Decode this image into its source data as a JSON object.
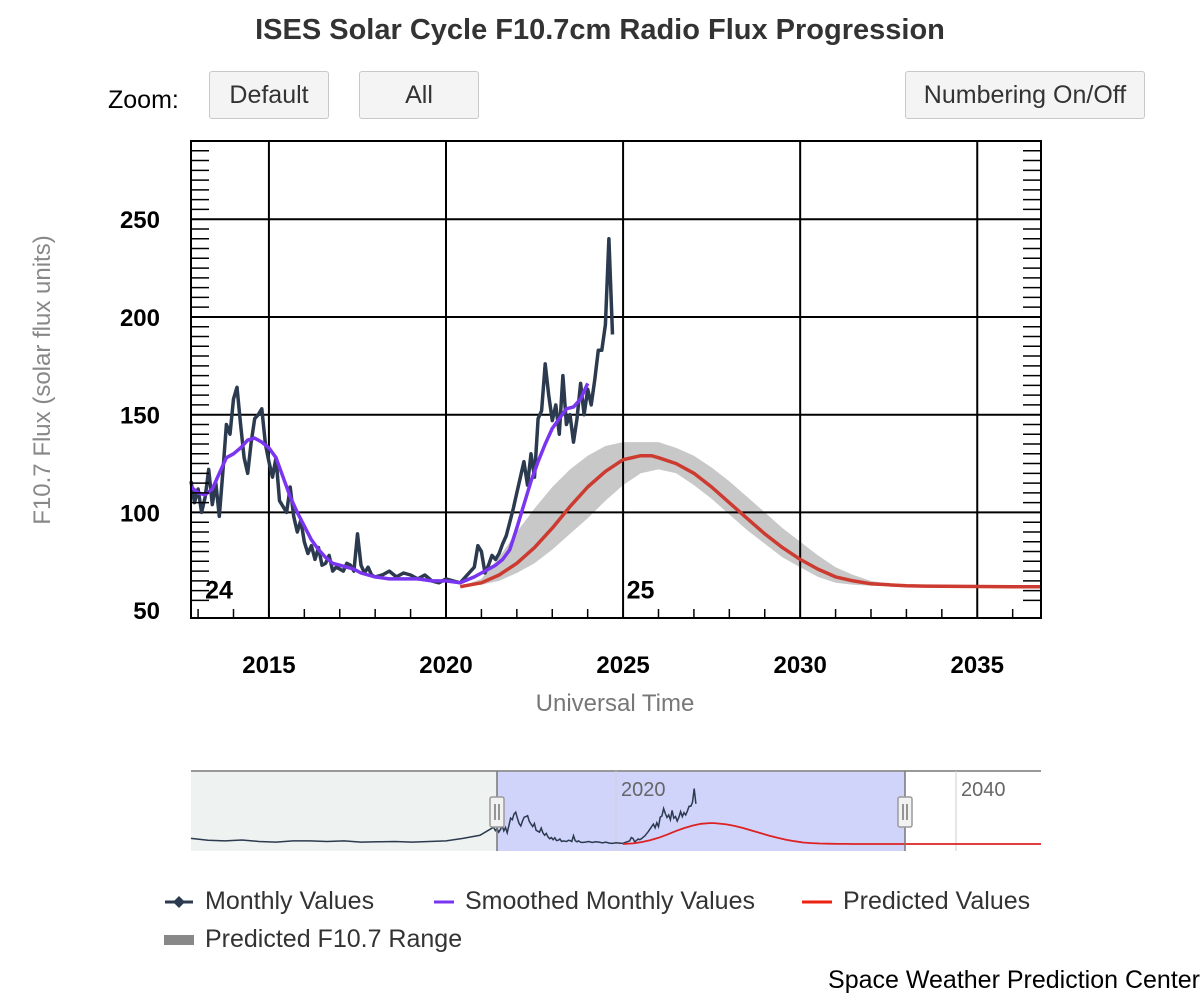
{
  "title": "ISES Solar Cycle F10.7cm Radio Flux Progression",
  "zoom": {
    "label": "Zoom:",
    "default_label": "Default",
    "all_label": "All",
    "numbering_label": "Numbering On/Off"
  },
  "credit": "Space Weather Prediction Center",
  "navigator": {
    "tick_labels": [
      "2020",
      "2040"
    ],
    "tick_years": [
      2020,
      2040
    ],
    "range_years": [
      1995,
      2045
    ],
    "selected_years": [
      2013,
      2037
    ],
    "data_end_year": 2024.8
  },
  "colors": {
    "monthly": "#2b3a4e",
    "smoothed": "#7a35f0",
    "predicted": "#cc3a30",
    "range": "#c8c8c8",
    "navigator_fill": "#c8cdfa"
  },
  "chart_data": {
    "type": "line",
    "title": "ISES Solar Cycle F10.7cm Radio Flux Progression",
    "xlabel": "Universal Time",
    "ylabel": "F10.7 Flux (solar flux units)",
    "xlim": [
      2012.8,
      2036.8
    ],
    "ylim": [
      46,
      290
    ],
    "x_ticks": [
      2015,
      2020,
      2025,
      2030,
      2035
    ],
    "y_ticks": [
      50,
      100,
      150,
      200,
      250
    ],
    "grid": true,
    "cycle_labels": [
      {
        "text": "24",
        "x": 2013.2,
        "y": 60
      },
      {
        "text": "25",
        "x": 2025.1,
        "y": 60
      }
    ],
    "legend": {
      "placement": "bottom",
      "entries": [
        "Monthly Values",
        "Smoothed Monthly Values",
        "Predicted Values",
        "Predicted F10.7 Range"
      ]
    },
    "series": [
      {
        "name": "Monthly Values",
        "x": [
          2012.8,
          2012.9,
          2013.0,
          2013.1,
          2013.2,
          2013.3,
          2013.4,
          2013.5,
          2013.6,
          2013.7,
          2013.8,
          2013.9,
          2014.0,
          2014.1,
          2014.2,
          2014.3,
          2014.4,
          2014.5,
          2014.6,
          2014.7,
          2014.8,
          2014.9,
          2015.0,
          2015.1,
          2015.2,
          2015.3,
          2015.4,
          2015.5,
          2015.6,
          2015.7,
          2015.8,
          2015.9,
          2016.0,
          2016.1,
          2016.2,
          2016.3,
          2016.4,
          2016.5,
          2016.6,
          2016.7,
          2016.8,
          2016.9,
          2017.0,
          2017.1,
          2017.2,
          2017.3,
          2017.4,
          2017.5,
          2017.6,
          2017.7,
          2017.8,
          2017.9,
          2018.0,
          2018.2,
          2018.4,
          2018.6,
          2018.8,
          2019.0,
          2019.2,
          2019.4,
          2019.6,
          2019.8,
          2020.0,
          2020.2,
          2020.4,
          2020.6,
          2020.8,
          2020.9,
          2021.0,
          2021.1,
          2021.2,
          2021.3,
          2021.4,
          2021.5,
          2021.6,
          2021.7,
          2021.8,
          2021.9,
          2022.0,
          2022.1,
          2022.2,
          2022.3,
          2022.4,
          2022.5,
          2022.6,
          2022.7,
          2022.8,
          2022.9,
          2023.0,
          2023.1,
          2023.2,
          2023.3,
          2023.4,
          2023.5,
          2023.6,
          2023.7,
          2023.8,
          2023.9,
          2024.0,
          2024.1,
          2024.2,
          2024.3,
          2024.4,
          2024.5,
          2024.6,
          2024.7
        ],
        "values": [
          116,
          105,
          112,
          100,
          108,
          122,
          104,
          115,
          98,
          121,
          145,
          140,
          158,
          164,
          145,
          128,
          120,
          136,
          148,
          150,
          153,
          135,
          126,
          118,
          128,
          106,
          103,
          100,
          113,
          98,
          90,
          96,
          85,
          79,
          83,
          76,
          82,
          73,
          74,
          78,
          70,
          72,
          71,
          70,
          74,
          73,
          70,
          89,
          73,
          69,
          72,
          68,
          67,
          68,
          70,
          67,
          69,
          68,
          66,
          68,
          65,
          64,
          66,
          65,
          64,
          68,
          72,
          83,
          80,
          69,
          73,
          78,
          76,
          79,
          84,
          88,
          95,
          102,
          110,
          118,
          126,
          114,
          130,
          118,
          148,
          152,
          176,
          160,
          147,
          155,
          140,
          170,
          145,
          150,
          136,
          148,
          166,
          150,
          163,
          155,
          168,
          183,
          183,
          196,
          240,
          191
        ]
      },
      {
        "name": "Smoothed Monthly Values",
        "x": [
          2012.8,
          2013.0,
          2013.2,
          2013.4,
          2013.6,
          2013.8,
          2014.0,
          2014.2,
          2014.4,
          2014.6,
          2014.8,
          2015.0,
          2015.2,
          2015.4,
          2015.6,
          2015.8,
          2016.0,
          2016.2,
          2016.4,
          2016.6,
          2016.8,
          2017.0,
          2017.2,
          2017.4,
          2017.6,
          2017.8,
          2018.0,
          2018.4,
          2018.8,
          2019.2,
          2019.6,
          2020.0,
          2020.4,
          2020.8,
          2021.0,
          2021.2,
          2021.4,
          2021.6,
          2021.8,
          2022.0,
          2022.2,
          2022.4,
          2022.6,
          2022.8,
          2023.0,
          2023.2,
          2023.4,
          2023.6,
          2023.8,
          2024.0
        ],
        "values": [
          113,
          110,
          109,
          112,
          120,
          128,
          130,
          133,
          137,
          138,
          136,
          133,
          128,
          118,
          108,
          100,
          93,
          86,
          81,
          77,
          74,
          73,
          72,
          71,
          69,
          68,
          67,
          66,
          66,
          66,
          65,
          65,
          64,
          67,
          69,
          71,
          73,
          76,
          81,
          92,
          104,
          116,
          126,
          135,
          143,
          148,
          153,
          154,
          158,
          166
        ]
      },
      {
        "name": "Predicted Values",
        "x": [
          2020.4,
          2021.0,
          2021.5,
          2022.0,
          2022.5,
          2023.0,
          2023.5,
          2024.0,
          2024.5,
          2025.0,
          2025.5,
          2025.8,
          2026.0,
          2026.5,
          2027.0,
          2027.5,
          2028.0,
          2028.5,
          2029.0,
          2029.5,
          2030.0,
          2030.5,
          2031.0,
          2031.5,
          2032.0,
          2032.5,
          2033.0,
          2033.5,
          2034.0,
          2035.0,
          2036.0,
          2036.8
        ],
        "values": [
          62,
          64,
          68,
          74,
          82,
          92,
          103,
          113,
          121,
          127,
          129,
          129,
          128,
          125,
          120,
          113,
          105,
          97,
          89,
          82,
          76,
          71,
          67,
          65,
          63.5,
          63,
          62.5,
          62.3,
          62.2,
          62.1,
          62,
          62
        ]
      },
      {
        "name": "Predicted F10.7 Range",
        "x": [
          2020.4,
          2021.0,
          2021.5,
          2022.0,
          2022.5,
          2023.0,
          2023.5,
          2024.0,
          2024.5,
          2025.0,
          2025.5,
          2026.0,
          2026.5,
          2027.0,
          2027.5,
          2028.0,
          2028.5,
          2029.0,
          2029.5,
          2030.0,
          2030.5,
          2031.0,
          2031.5,
          2032.0,
          2032.5,
          2033.0,
          2033.5,
          2034.0,
          2035.0,
          2036.0,
          2036.8
        ],
        "upper": [
          62,
          66,
          77,
          90,
          102,
          113,
          122,
          129,
          134,
          136,
          136,
          136,
          133,
          129,
          123,
          116,
          108,
          100,
          92,
          85,
          78,
          72,
          68,
          65,
          63.5,
          63,
          62.6,
          62.3,
          62.1,
          62,
          62
        ],
        "lower": [
          62,
          63,
          65,
          69,
          74,
          81,
          89,
          97,
          106,
          114,
          120,
          122,
          120,
          114,
          107,
          99,
          91,
          84,
          77,
          72,
          67,
          64,
          63,
          62.5,
          62.3,
          62.2,
          62.1,
          62,
          62,
          62,
          62
        ]
      }
    ]
  }
}
